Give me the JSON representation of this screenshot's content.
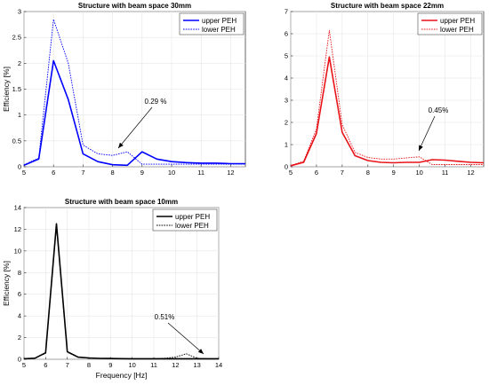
{
  "chart_data": [
    {
      "type": "line",
      "title": "Structure with beam space 30mm",
      "xlabel": "",
      "ylabel": "Efficiency [%]",
      "xlim": [
        5,
        12.5
      ],
      "ylim": [
        0,
        3
      ],
      "xticks": [
        5,
        6,
        7,
        8,
        9,
        10,
        11,
        12
      ],
      "yticks": [
        0,
        0.5,
        1,
        1.5,
        2,
        2.5,
        3
      ],
      "ytick_labels": [
        "0",
        "0.5",
        "1",
        "1.5",
        "2",
        "2.5",
        "3"
      ],
      "grid": true,
      "legend_position": "top-right",
      "color": "#0000ff",
      "x": [
        5,
        5.5,
        6,
        6.5,
        7,
        7.5,
        8,
        8.5,
        9,
        9.5,
        10,
        10.5,
        11,
        11.5,
        12,
        12.5
      ],
      "series": [
        {
          "name": "upper PEH",
          "style": "solid",
          "values": [
            0.03,
            0.15,
            2.05,
            1.3,
            0.25,
            0.1,
            0.04,
            0.03,
            0.29,
            0.15,
            0.1,
            0.08,
            0.07,
            0.07,
            0.06,
            0.06
          ]
        },
        {
          "name": "lower PEH",
          "style": "dotted",
          "values": [
            0.04,
            0.17,
            2.85,
            2.0,
            0.42,
            0.25,
            0.22,
            0.29,
            0.05,
            0.05,
            0.05,
            0.05,
            0.05,
            0.05,
            0.05,
            0.05
          ]
        }
      ],
      "annotation": {
        "text": "0.29 %",
        "x": 8.5,
        "y": 0.29
      }
    },
    {
      "type": "line",
      "title": "Structure with beam space 22mm",
      "xlabel": "",
      "ylabel": "",
      "xlim": [
        5,
        12.5
      ],
      "ylim": [
        0,
        7
      ],
      "xticks": [
        5,
        6,
        7,
        8,
        9,
        10,
        11,
        12
      ],
      "yticks": [
        0,
        1,
        2,
        3,
        4,
        5,
        6,
        7
      ],
      "ytick_labels": [
        "0",
        "1",
        "2",
        "3",
        "4",
        "5",
        "6",
        "7"
      ],
      "grid": true,
      "legend_position": "top-right",
      "color": "#e8141a",
      "x": [
        5,
        5.5,
        6,
        6.5,
        7,
        7.5,
        8,
        8.5,
        9,
        9.5,
        10,
        10.5,
        11,
        11.5,
        12,
        12.5
      ],
      "series": [
        {
          "name": "upper PEH",
          "style": "solid",
          "values": [
            0.05,
            0.2,
            1.5,
            4.95,
            1.55,
            0.5,
            0.28,
            0.2,
            0.18,
            0.2,
            0.2,
            0.32,
            0.3,
            0.25,
            0.2,
            0.18
          ]
        },
        {
          "name": "lower PEH",
          "style": "dotted",
          "values": [
            0.06,
            0.25,
            1.7,
            6.15,
            1.9,
            0.65,
            0.42,
            0.35,
            0.35,
            0.4,
            0.45,
            0.1,
            0.1,
            0.1,
            0.1,
            0.1
          ]
        }
      ],
      "annotation": {
        "text": "0.45%",
        "x": 10,
        "y": 0.45
      }
    },
    {
      "type": "line",
      "title": "Structure with beam space 10mm",
      "xlabel": "Frequency [Hz]",
      "ylabel": "Efficiency [%]",
      "xlim": [
        5,
        14
      ],
      "ylim": [
        0,
        14
      ],
      "xticks": [
        5,
        6,
        7,
        8,
        9,
        10,
        11,
        12,
        13,
        14
      ],
      "yticks": [
        0,
        2,
        4,
        6,
        8,
        10,
        12,
        14
      ],
      "ytick_labels": [
        "0",
        "2",
        "4",
        "6",
        "8",
        "10",
        "12",
        "14"
      ],
      "grid": true,
      "legend_position": "top-right",
      "color": "#000000",
      "x": [
        5,
        5.5,
        6,
        6.5,
        7,
        7.5,
        8,
        8.5,
        9,
        9.5,
        10,
        10.5,
        11,
        11.5,
        12,
        12.5,
        13,
        13.5,
        14
      ],
      "series": [
        {
          "name": "upper PEH",
          "style": "solid",
          "values": [
            0.05,
            0.1,
            0.6,
            12.5,
            0.7,
            0.2,
            0.12,
            0.08,
            0.07,
            0.06,
            0.05,
            0.05,
            0.05,
            0.05,
            0.05,
            0.05,
            0.05,
            0.05,
            0.05
          ]
        },
        {
          "name": "lower PEH",
          "style": "dotted",
          "values": [
            0.05,
            0.1,
            0.55,
            12.3,
            0.65,
            0.18,
            0.1,
            0.07,
            0.06,
            0.05,
            0.05,
            0.05,
            0.05,
            0.1,
            0.2,
            0.51,
            0.1,
            0.05,
            0.05
          ]
        }
      ],
      "annotation": {
        "text": "0.51%",
        "x": 12.5,
        "y": 0.51
      }
    }
  ]
}
